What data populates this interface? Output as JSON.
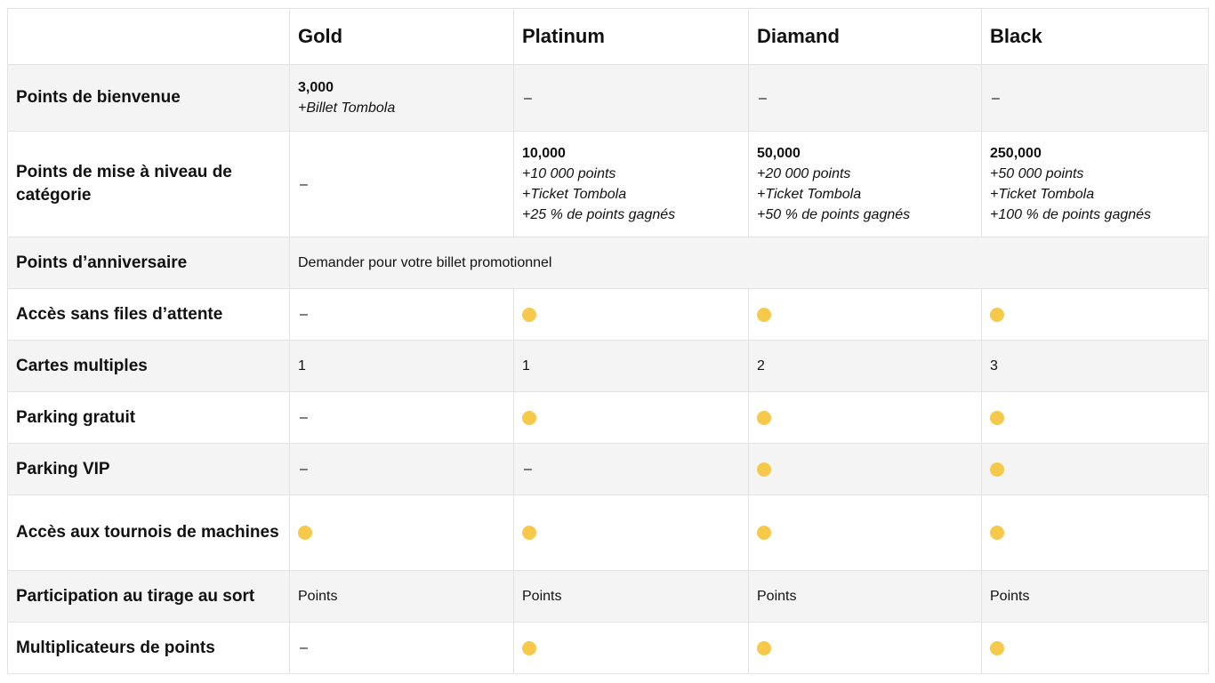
{
  "colors": {
    "dot": "#f7c94b"
  },
  "header": {
    "empty": "",
    "tiers": [
      "Gold",
      "Platinum",
      "Diamand",
      "Black"
    ]
  },
  "rows": {
    "welcome": {
      "label": "Points de bienvenue",
      "gold_value": "3,000",
      "gold_note": "+Billet Tombola",
      "platinum": "–",
      "diamand": "–",
      "black": "–"
    },
    "upgrade": {
      "label": "Points de mise à niveau de catégorie",
      "gold": "–",
      "platinum": {
        "value": "10,000",
        "lines": [
          "+10 000 points",
          "+Ticket Tombola",
          "+25 % de points gagnés"
        ]
      },
      "diamand": {
        "value": "50,000",
        "lines": [
          "+20 000 points",
          "+Ticket Tombola",
          "+50 % de points gagnés"
        ]
      },
      "black": {
        "value": "250,000",
        "lines": [
          "+50 000 points",
          "+Ticket Tombola",
          "+100 % de points gagnés"
        ]
      }
    },
    "birthday": {
      "label": "Points d’anniversaire",
      "value": "Demander pour votre billet promotionnel"
    },
    "no_queue": {
      "label": "Accès sans files d’attente",
      "gold": "–",
      "platinum_icon": "yellow-dot",
      "diamand_icon": "yellow-dot",
      "black_icon": "yellow-dot"
    },
    "multi_cards": {
      "label": "Cartes multiples",
      "gold": "1",
      "platinum": "1",
      "diamand": "2",
      "black": "3"
    },
    "free_parking": {
      "label": "Parking gratuit",
      "gold": "–",
      "platinum_icon": "yellow-dot",
      "diamand_icon": "yellow-dot",
      "black_icon": "yellow-dot"
    },
    "vip_parking": {
      "label": "Parking VIP",
      "gold": "–",
      "platinum": "–",
      "diamand_icon": "yellow-dot",
      "black_icon": "yellow-dot"
    },
    "tournaments": {
      "label": "Accès aux tournois de machines",
      "gold_icon": "yellow-dot",
      "platinum_icon": "yellow-dot",
      "diamand_icon": "yellow-dot",
      "black_icon": "yellow-dot"
    },
    "draw": {
      "label": "Participation au tirage au sort",
      "gold": "Points",
      "platinum": "Points",
      "diamand": "Points",
      "black": "Points"
    },
    "multipliers": {
      "label": "Multiplicateurs de points",
      "gold": "–",
      "platinum_icon": "yellow-dot",
      "diamand_icon": "yellow-dot",
      "black_icon": "yellow-dot"
    }
  }
}
